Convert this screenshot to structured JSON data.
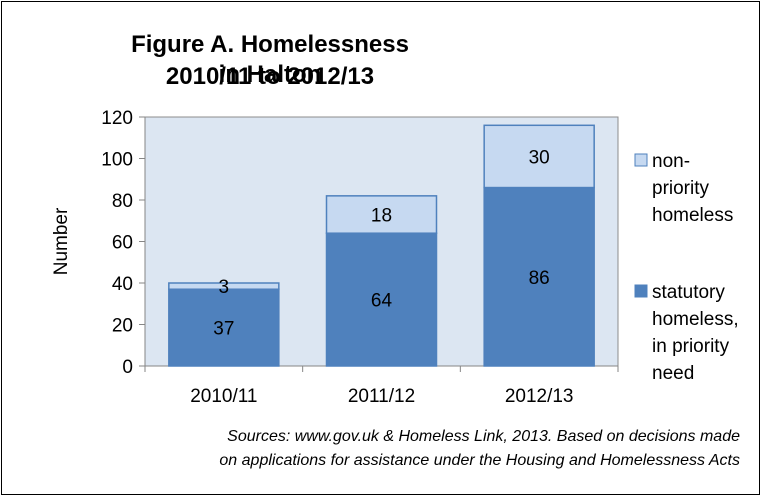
{
  "chart_data": {
    "type": "bar",
    "stacked": true,
    "title": [
      "Figure A. Homelessness in Halton",
      "2010/11 to 2012/13"
    ],
    "ylabel": "Number",
    "xlabel": "",
    "categories": [
      "2010/11",
      "2011/12",
      "2012/13"
    ],
    "ylim": [
      0,
      120
    ],
    "yticks": [
      0,
      20,
      40,
      60,
      80,
      100,
      120
    ],
    "grid": false,
    "legend_position": "right",
    "series": [
      {
        "name": "statutory homeless, in priority need",
        "values": [
          37,
          64,
          86
        ],
        "color": "#4f81bd"
      },
      {
        "name": "non-priority homeless",
        "values": [
          3,
          18,
          30
        ],
        "color": "#c6d9f1"
      }
    ],
    "legend": [
      {
        "lines": [
          "non-",
          "priority",
          "homeless"
        ],
        "color": "#c6d9f1"
      },
      {
        "lines": [
          "statutory",
          "homeless,",
          "in priority",
          "need"
        ],
        "color": "#4f81bd"
      }
    ],
    "plot_background": "#dce6f2"
  },
  "sources": [
    "Sources: www.gov.uk & Homeless Link, 2013.  Based on decisions  made",
    "on applications for assistance  under the Housing and Homelessness Acts"
  ]
}
